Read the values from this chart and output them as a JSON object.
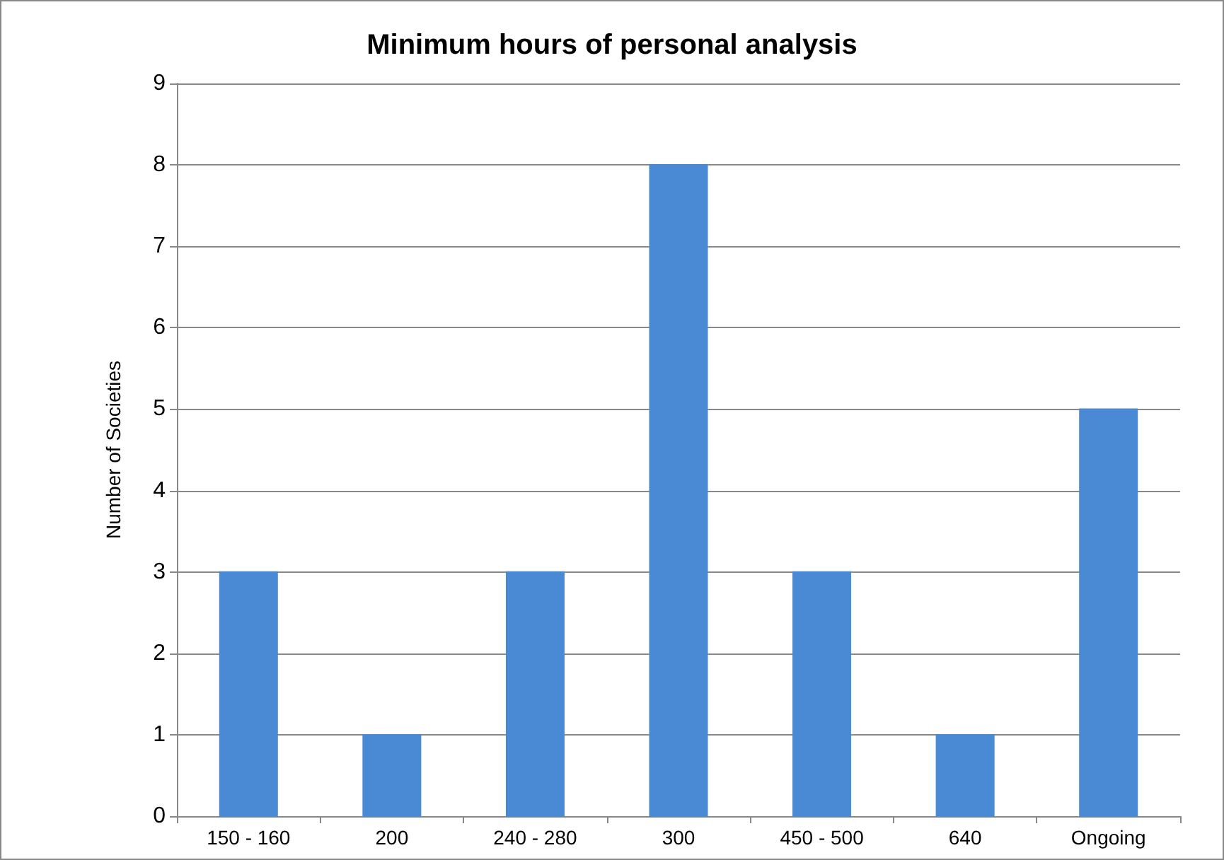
{
  "chart_data": {
    "type": "bar",
    "title": "Minimum hours of personal analysis",
    "ylabel": "Number of Societies",
    "categories": [
      "150 - 160",
      "200",
      "240 - 280",
      "300",
      "450 - 500",
      "640",
      "Ongoing"
    ],
    "values": [
      3,
      1,
      3,
      8,
      3,
      1,
      5
    ],
    "color": "#4a8ad4",
    "ylim": [
      0,
      9
    ],
    "yticks": [
      0,
      1,
      2,
      3,
      4,
      5,
      6,
      7,
      8,
      9
    ],
    "grid": "y"
  }
}
